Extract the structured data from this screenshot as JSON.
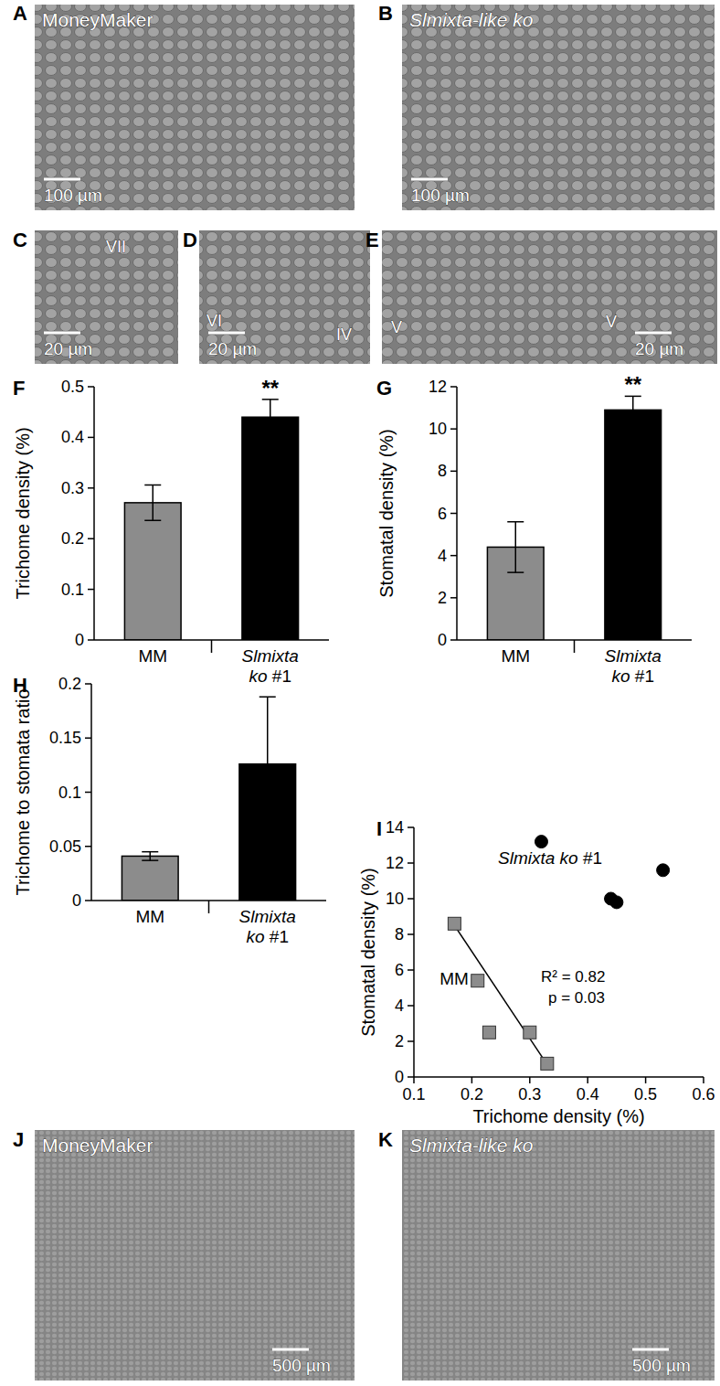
{
  "panels": [
    {
      "panel": "A",
      "label": "MoneyMaker",
      "scale_bar": "100 µm"
    },
    {
      "panel": "B",
      "label": "Slmixta-like ko",
      "scale_bar": "100 µm"
    },
    {
      "panel": "C",
      "trichome_types": [
        "VII"
      ],
      "scale_bar": "20 µm"
    },
    {
      "panel": "D",
      "trichome_types": [
        "VI",
        "IV"
      ],
      "scale_bar": "20 µm"
    },
    {
      "panel": "E",
      "trichome_types": [
        "V",
        "V"
      ],
      "scale_bar": "20 µm"
    },
    {
      "panel": "J",
      "label": "MoneyMaker",
      "scale_bar": "500 µm"
    },
    {
      "panel": "K",
      "label": "Slmixta-like ko",
      "scale_bar": "500 µm"
    }
  ],
  "chart_data": [
    {
      "panel": "F",
      "type": "bar",
      "y_label": "Trichome density (%)",
      "categories": [
        "MM",
        "Slmixta ko #1"
      ],
      "values": [
        0.271,
        0.44
      ],
      "errors": [
        0.035,
        0.035
      ],
      "colors": [
        "#8c8c8c",
        "#000000"
      ],
      "ylim": [
        0,
        0.5
      ],
      "yticks": [
        0,
        0.1,
        0.2,
        0.3,
        0.4,
        0.5
      ],
      "annotations": [
        {
          "category": "Slmixta ko #1",
          "text": "**"
        }
      ]
    },
    {
      "panel": "G",
      "type": "bar",
      "y_label": "Stomatal density (%)",
      "categories": [
        "MM",
        "Slmixta ko #1"
      ],
      "values": [
        4.4,
        10.9
      ],
      "errors": [
        1.2,
        0.65
      ],
      "colors": [
        "#8c8c8c",
        "#000000"
      ],
      "ylim": [
        0,
        12
      ],
      "yticks": [
        0,
        2,
        4,
        6,
        8,
        10,
        12
      ],
      "annotations": [
        {
          "category": "Slmixta ko #1",
          "text": "**"
        }
      ]
    },
    {
      "panel": "H",
      "type": "bar",
      "y_label": "Trichome to stomata ratio",
      "categories": [
        "MM",
        "Slmixta ko #1"
      ],
      "values": [
        0.041,
        0.126
      ],
      "errors": [
        0.004,
        0.062
      ],
      "colors": [
        "#8c8c8c",
        "#000000"
      ],
      "ylim": [
        0,
        0.2
      ],
      "yticks": [
        0,
        0.05,
        0.1,
        0.15,
        0.2
      ]
    },
    {
      "panel": "I",
      "type": "scatter",
      "x_label": "Trichome density (%)",
      "y_label": "Stomatal density (%)",
      "xlim": [
        0.1,
        0.6
      ],
      "xticks": [
        0.1,
        0.2,
        0.3,
        0.4,
        0.5,
        0.6
      ],
      "ylim": [
        0,
        14
      ],
      "yticks": [
        0,
        2,
        4,
        6,
        8,
        10,
        12,
        14
      ],
      "series": [
        {
          "name": "MM",
          "color": "#8c8c8c",
          "marker": "square",
          "x": [
            0.17,
            0.21,
            0.23,
            0.3,
            0.33
          ],
          "values": [
            8.6,
            5.4,
            2.5,
            2.5,
            0.75
          ]
        },
        {
          "name": "Slmixta ko #1",
          "color": "#000000",
          "marker": "circle",
          "x": [
            0.32,
            0.44,
            0.45,
            0.53
          ],
          "values": [
            13.2,
            10.0,
            9.8,
            11.6
          ]
        }
      ],
      "fit": {
        "x": [
          0.17,
          0.33
        ],
        "values": [
          8.5,
          0.7
        ]
      },
      "annotations": [
        "R² = 0.82",
        "p = 0.03"
      ]
    }
  ]
}
